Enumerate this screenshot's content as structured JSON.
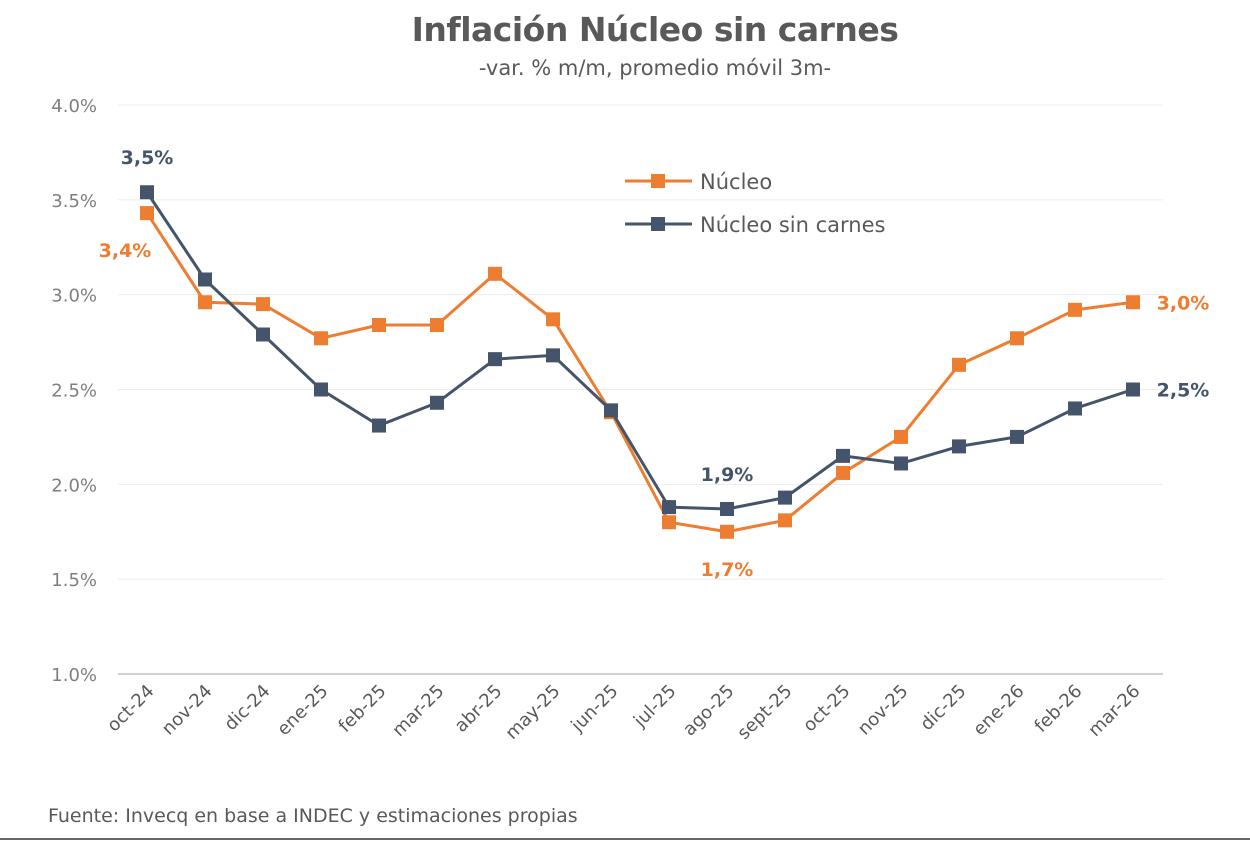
{
  "chart_data": {
    "type": "line",
    "title": "Inflación Núcleo sin carnes",
    "subtitle": "-var. % m/m, promedio móvil 3m-",
    "xlabel": "",
    "ylabel": "",
    "ylim": [
      1.0,
      4.0
    ],
    "yticks": [
      "1.0%",
      "1.5%",
      "2.0%",
      "2.5%",
      "3.0%",
      "3.5%",
      "4.0%"
    ],
    "grid": true,
    "legend_position": "top-center",
    "categories": [
      "oct-24",
      "nov-24",
      "dic-24",
      "ene-25",
      "feb-25",
      "mar-25",
      "abr-25",
      "may-25",
      "jun-25",
      "jul-25",
      "ago-25",
      "sept-25",
      "oct-25",
      "nov-25",
      "dic-25",
      "ene-26",
      "feb-26",
      "mar-26"
    ],
    "series": [
      {
        "name": "Núcleo",
        "color": "#ED7D31",
        "values": [
          3.43,
          2.96,
          2.95,
          2.77,
          2.84,
          2.84,
          3.11,
          2.87,
          2.38,
          1.8,
          1.75,
          1.81,
          2.06,
          2.25,
          2.63,
          2.77,
          2.92,
          2.96
        ],
        "data_labels": [
          {
            "index": 0,
            "text": "3,4%"
          },
          {
            "index": 10,
            "text": "1,7%"
          },
          {
            "index": 17,
            "text": "3,0%"
          }
        ]
      },
      {
        "name": "Núcleo sin carnes",
        "color": "#44546A",
        "values": [
          3.54,
          3.08,
          2.79,
          2.5,
          2.31,
          2.43,
          2.66,
          2.68,
          2.39,
          1.88,
          1.87,
          1.93,
          2.15,
          2.11,
          2.2,
          2.25,
          2.4,
          2.5
        ],
        "data_labels": [
          {
            "index": 0,
            "text": "3,5%"
          },
          {
            "index": 10,
            "text": "1,9%"
          },
          {
            "index": 17,
            "text": "2,5%"
          }
        ]
      }
    ]
  },
  "source": "Fuente: Invecq en base a INDEC y estimaciones propias"
}
